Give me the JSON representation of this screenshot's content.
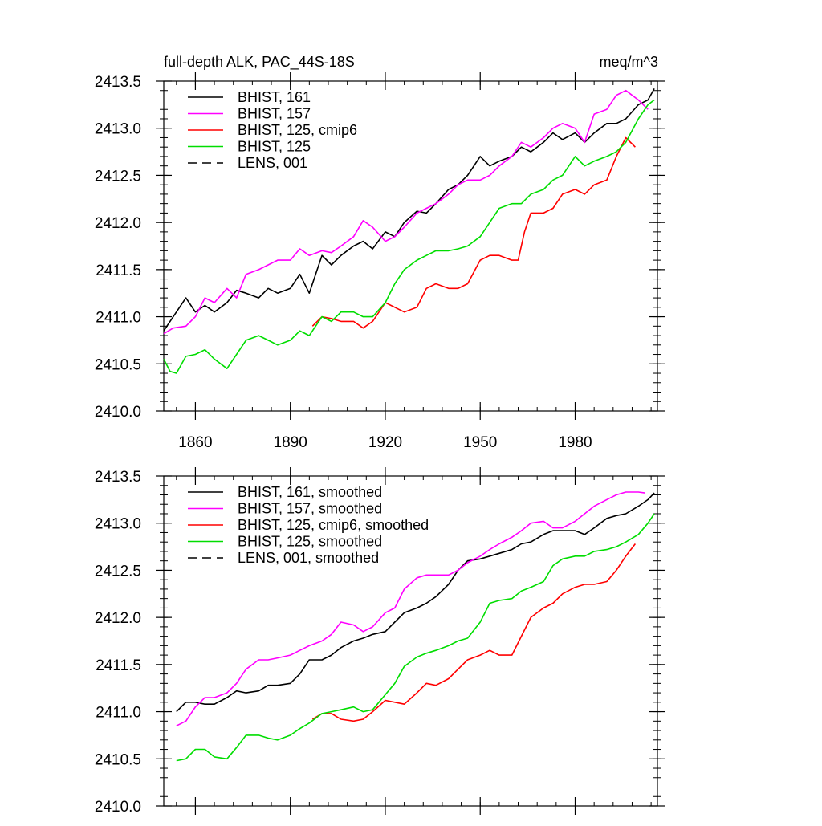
{
  "figure": {
    "title_left": "full-depth ALK, PAC_44S-18S",
    "title_right": "meq/m^3"
  },
  "chart_data": [
    {
      "type": "line",
      "xlim": [
        1850,
        2006
      ],
      "ylim": [
        2410.0,
        2413.5
      ],
      "xticks": [
        1860,
        1890,
        1920,
        1950,
        1980
      ],
      "xtick_labels": [
        "1860",
        "1890",
        "1920",
        "1950",
        "1980"
      ],
      "yticks": [
        2410.0,
        2410.5,
        2411.0,
        2411.5,
        2412.0,
        2412.5,
        2413.0,
        2413.5
      ],
      "ytick_labels": [
        "2410.0",
        "2410.5",
        "2411.0",
        "2411.5",
        "2412.0",
        "2412.5",
        "2413.0",
        "2413.5"
      ],
      "legend_position": "top-left",
      "series": [
        {
          "name": "BHIST, 161",
          "color": "#000000",
          "dash": "solid",
          "x": [
            1850,
            1853,
            1857,
            1860,
            1863,
            1866,
            1870,
            1873,
            1876,
            1880,
            1883,
            1886,
            1890,
            1893,
            1896,
            1900,
            1903,
            1906,
            1910,
            1913,
            1916,
            1920,
            1923,
            1926,
            1930,
            1933,
            1936,
            1940,
            1943,
            1946,
            1950,
            1953,
            1956,
            1960,
            1963,
            1966,
            1970,
            1973,
            1976,
            1980,
            1983,
            1986,
            1990,
            1993,
            1996,
            2000,
            2003,
            2005
          ],
          "y": [
            2410.85,
            2411.0,
            2411.2,
            2411.05,
            2411.12,
            2411.05,
            2411.15,
            2411.28,
            2411.25,
            2411.2,
            2411.3,
            2411.25,
            2411.3,
            2411.45,
            2411.25,
            2411.65,
            2411.55,
            2411.65,
            2411.75,
            2411.8,
            2411.72,
            2411.9,
            2411.85,
            2412.0,
            2412.12,
            2412.1,
            2412.2,
            2412.35,
            2412.4,
            2412.5,
            2412.7,
            2412.6,
            2412.65,
            2412.7,
            2412.8,
            2412.75,
            2412.85,
            2412.95,
            2412.88,
            2412.95,
            2412.85,
            2412.95,
            2413.05,
            2413.05,
            2413.1,
            2413.25,
            2413.3,
            2413.42
          ]
        },
        {
          "name": "BHIST, 157",
          "color": "#ff00ff",
          "dash": "solid",
          "x": [
            1850,
            1853,
            1857,
            1860,
            1863,
            1866,
            1870,
            1873,
            1876,
            1880,
            1883,
            1886,
            1890,
            1893,
            1896,
            1900,
            1903,
            1906,
            1910,
            1913,
            1916,
            1920,
            1923,
            1926,
            1930,
            1933,
            1936,
            1940,
            1943,
            1946,
            1950,
            1953,
            1956,
            1960,
            1963,
            1966,
            1970,
            1973,
            1976,
            1980,
            1983,
            1986,
            1990,
            1993,
            1996,
            2000,
            2003
          ],
          "y": [
            2410.82,
            2410.88,
            2410.9,
            2411.0,
            2411.2,
            2411.15,
            2411.3,
            2411.2,
            2411.45,
            2411.5,
            2411.55,
            2411.6,
            2411.6,
            2411.72,
            2411.65,
            2411.7,
            2411.68,
            2411.75,
            2411.85,
            2412.02,
            2411.95,
            2411.8,
            2411.85,
            2411.95,
            2412.1,
            2412.15,
            2412.2,
            2412.3,
            2412.4,
            2412.45,
            2412.45,
            2412.5,
            2412.6,
            2412.7,
            2412.85,
            2412.8,
            2412.9,
            2413.0,
            2413.05,
            2413.0,
            2412.85,
            2413.15,
            2413.2,
            2413.35,
            2413.4,
            2413.3,
            2413.2
          ]
        },
        {
          "name": "BHIST, 125, cmip6",
          "color": "#ff0000",
          "dash": "solid",
          "x": [
            1897,
            1900,
            1903,
            1906,
            1910,
            1913,
            1916,
            1920,
            1923,
            1926,
            1930,
            1933,
            1936,
            1940,
            1943,
            1946,
            1950,
            1953,
            1956,
            1960,
            1962,
            1964,
            1966,
            1970,
            1973,
            1976,
            1980,
            1983,
            1986,
            1990,
            1993,
            1996,
            1999
          ],
          "y": [
            2410.9,
            2411.0,
            2410.98,
            2410.95,
            2410.95,
            2410.88,
            2410.95,
            2411.15,
            2411.1,
            2411.05,
            2411.1,
            2411.3,
            2411.35,
            2411.3,
            2411.3,
            2411.35,
            2411.6,
            2411.65,
            2411.65,
            2411.6,
            2411.6,
            2411.9,
            2412.1,
            2412.1,
            2412.15,
            2412.3,
            2412.35,
            2412.3,
            2412.4,
            2412.45,
            2412.7,
            2412.9,
            2412.8
          ]
        },
        {
          "name": "BHIST, 125",
          "color": "#00dd00",
          "dash": "solid",
          "x": [
            1850,
            1852,
            1854,
            1857,
            1860,
            1863,
            1866,
            1870,
            1873,
            1876,
            1880,
            1883,
            1886,
            1890,
            1893,
            1896,
            1900,
            1903,
            1906,
            1910,
            1913,
            1916,
            1920,
            1923,
            1926,
            1930,
            1933,
            1936,
            1940,
            1943,
            1946,
            1950,
            1953,
            1956,
            1960,
            1963,
            1966,
            1970,
            1973,
            1976,
            1980,
            1983,
            1986,
            1990,
            1993,
            1996,
            2000,
            2003,
            2005
          ],
          "y": [
            2410.55,
            2410.42,
            2410.4,
            2410.58,
            2410.6,
            2410.65,
            2410.55,
            2410.45,
            2410.6,
            2410.75,
            2410.8,
            2410.75,
            2410.7,
            2410.75,
            2410.85,
            2410.8,
            2411.0,
            2410.95,
            2411.05,
            2411.05,
            2411.0,
            2411.0,
            2411.15,
            2411.35,
            2411.5,
            2411.6,
            2411.65,
            2411.7,
            2411.7,
            2411.72,
            2411.75,
            2411.85,
            2412.0,
            2412.15,
            2412.2,
            2412.2,
            2412.3,
            2412.35,
            2412.45,
            2412.5,
            2412.7,
            2412.6,
            2412.65,
            2412.7,
            2412.75,
            2412.85,
            2413.1,
            2413.25,
            2413.3
          ]
        }
      ],
      "legend_entries": [
        {
          "name": "BHIST, 161",
          "color": "#000000",
          "dash": "solid"
        },
        {
          "name": "BHIST, 157",
          "color": "#ff00ff",
          "dash": "solid"
        },
        {
          "name": "BHIST, 125, cmip6",
          "color": "#ff0000",
          "dash": "solid"
        },
        {
          "name": "BHIST, 125",
          "color": "#00dd00",
          "dash": "solid"
        },
        {
          "name": "LENS, 001",
          "color": "#000000",
          "dash": "dashed"
        }
      ]
    },
    {
      "type": "line",
      "xlim": [
        1850,
        2006
      ],
      "ylim": [
        2410.0,
        2413.5
      ],
      "xticks": [
        1860,
        1890,
        1920,
        1950,
        1980
      ],
      "xtick_labels": [],
      "yticks": [
        2410.0,
        2410.5,
        2411.0,
        2411.5,
        2412.0,
        2412.5,
        2413.0,
        2413.5
      ],
      "ytick_labels": [
        "2410.0",
        "2410.5",
        "2411.0",
        "2411.5",
        "2412.0",
        "2412.5",
        "2413.0",
        "2413.5"
      ],
      "legend_position": "top-left",
      "series": [
        {
          "name": "BHIST, 161, smoothed",
          "color": "#000000",
          "dash": "solid",
          "x": [
            1854,
            1857,
            1860,
            1863,
            1866,
            1870,
            1873,
            1876,
            1880,
            1883,
            1886,
            1890,
            1893,
            1896,
            1900,
            1903,
            1906,
            1910,
            1913,
            1916,
            1920,
            1923,
            1926,
            1930,
            1933,
            1936,
            1940,
            1943,
            1946,
            1950,
            1953,
            1956,
            1960,
            1963,
            1966,
            1970,
            1973,
            1976,
            1980,
            1983,
            1986,
            1990,
            1993,
            1996,
            2000,
            2003,
            2005
          ],
          "y": [
            2411.0,
            2411.1,
            2411.1,
            2411.08,
            2411.08,
            2411.15,
            2411.22,
            2411.2,
            2411.22,
            2411.28,
            2411.28,
            2411.3,
            2411.4,
            2411.55,
            2411.55,
            2411.6,
            2411.68,
            2411.75,
            2411.78,
            2411.82,
            2411.85,
            2411.95,
            2412.05,
            2412.1,
            2412.15,
            2412.22,
            2412.35,
            2412.5,
            2412.6,
            2412.62,
            2412.65,
            2412.68,
            2412.72,
            2412.78,
            2412.8,
            2412.88,
            2412.92,
            2412.92,
            2412.92,
            2412.88,
            2412.95,
            2413.05,
            2413.08,
            2413.1,
            2413.18,
            2413.25,
            2413.32
          ]
        },
        {
          "name": "BHIST, 157, smoothed",
          "color": "#ff00ff",
          "dash": "solid",
          "x": [
            1854,
            1857,
            1860,
            1863,
            1866,
            1870,
            1873,
            1876,
            1880,
            1883,
            1886,
            1890,
            1893,
            1896,
            1900,
            1903,
            1906,
            1910,
            1913,
            1916,
            1920,
            1923,
            1926,
            1930,
            1933,
            1936,
            1940,
            1943,
            1946,
            1950,
            1953,
            1956,
            1960,
            1963,
            1966,
            1970,
            1973,
            1976,
            1980,
            1983,
            1986,
            1990,
            1993,
            1996,
            2000,
            2002
          ],
          "y": [
            2410.85,
            2410.9,
            2411.05,
            2411.15,
            2411.15,
            2411.2,
            2411.3,
            2411.45,
            2411.55,
            2411.55,
            2411.57,
            2411.6,
            2411.65,
            2411.7,
            2411.75,
            2411.82,
            2411.95,
            2411.92,
            2411.85,
            2411.9,
            2412.05,
            2412.1,
            2412.3,
            2412.42,
            2412.45,
            2412.45,
            2412.45,
            2412.5,
            2412.58,
            2412.65,
            2412.72,
            2412.78,
            2412.85,
            2412.92,
            2413.0,
            2413.02,
            2412.95,
            2412.95,
            2413.02,
            2413.1,
            2413.18,
            2413.25,
            2413.3,
            2413.33,
            2413.33,
            2413.32
          ]
        },
        {
          "name": "BHIST, 125, cmip6, smoothed",
          "color": "#ff0000",
          "dash": "solid",
          "x": [
            1897,
            1900,
            1903,
            1906,
            1910,
            1913,
            1916,
            1920,
            1923,
            1926,
            1930,
            1933,
            1936,
            1940,
            1943,
            1946,
            1950,
            1953,
            1956,
            1960,
            1963,
            1966,
            1970,
            1973,
            1976,
            1980,
            1983,
            1986,
            1990,
            1993,
            1996,
            1999
          ],
          "y": [
            2410.92,
            2410.98,
            2410.98,
            2410.92,
            2410.9,
            2410.92,
            2411.0,
            2411.12,
            2411.1,
            2411.08,
            2411.2,
            2411.3,
            2411.28,
            2411.35,
            2411.45,
            2411.55,
            2411.6,
            2411.65,
            2411.6,
            2411.6,
            2411.8,
            2412.0,
            2412.1,
            2412.15,
            2412.25,
            2412.32,
            2412.35,
            2412.35,
            2412.38,
            2412.5,
            2412.65,
            2412.78
          ]
        },
        {
          "name": "BHIST, 125, smoothed",
          "color": "#00dd00",
          "dash": "solid",
          "x": [
            1854,
            1857,
            1860,
            1863,
            1866,
            1870,
            1873,
            1876,
            1880,
            1883,
            1886,
            1890,
            1893,
            1896,
            1900,
            1903,
            1906,
            1910,
            1913,
            1916,
            1920,
            1923,
            1926,
            1930,
            1933,
            1936,
            1940,
            1943,
            1946,
            1950,
            1953,
            1956,
            1960,
            1963,
            1966,
            1970,
            1973,
            1976,
            1980,
            1983,
            1986,
            1990,
            1993,
            1996,
            2000,
            2003,
            2005
          ],
          "y": [
            2410.48,
            2410.5,
            2410.6,
            2410.6,
            2410.52,
            2410.5,
            2410.62,
            2410.75,
            2410.75,
            2410.72,
            2410.7,
            2410.75,
            2410.82,
            2410.88,
            2410.98,
            2411.0,
            2411.02,
            2411.05,
            2411.0,
            2411.02,
            2411.18,
            2411.3,
            2411.48,
            2411.58,
            2411.62,
            2411.65,
            2411.7,
            2411.75,
            2411.78,
            2411.95,
            2412.15,
            2412.18,
            2412.2,
            2412.28,
            2412.32,
            2412.38,
            2412.55,
            2412.62,
            2412.65,
            2412.65,
            2412.7,
            2412.72,
            2412.75,
            2412.8,
            2412.88,
            2413.0,
            2413.1
          ]
        }
      ],
      "legend_entries": [
        {
          "name": "BHIST, 161, smoothed",
          "color": "#000000",
          "dash": "solid"
        },
        {
          "name": "BHIST, 157, smoothed",
          "color": "#ff00ff",
          "dash": "solid"
        },
        {
          "name": "BHIST, 125, cmip6, smoothed",
          "color": "#ff0000",
          "dash": "solid"
        },
        {
          "name": "BHIST, 125, smoothed",
          "color": "#00dd00",
          "dash": "solid"
        },
        {
          "name": "LENS, 001, smoothed",
          "color": "#000000",
          "dash": "dashed"
        }
      ]
    }
  ]
}
